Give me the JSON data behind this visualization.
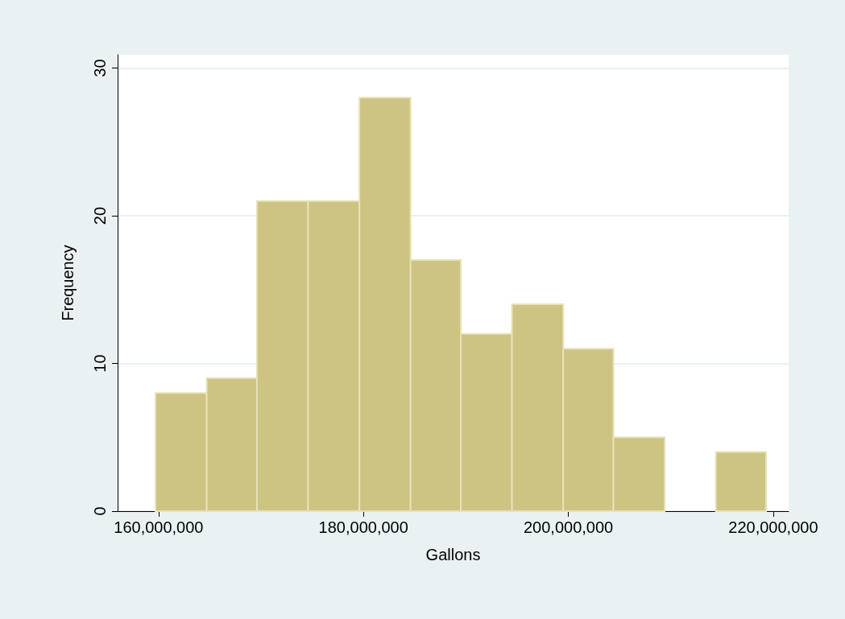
{
  "chart_data": {
    "type": "histogram",
    "xlabel": "Gallons",
    "ylabel": "Frequency",
    "bins": [
      159700000,
      164700000,
      169600000,
      174600000,
      179600000,
      184600000,
      189500000,
      194500000,
      199500000,
      204400000,
      209400000,
      214400000,
      219300000
    ],
    "values": [
      8,
      9,
      21,
      21,
      28,
      17,
      12,
      14,
      11,
      5,
      0,
      4
    ],
    "color": "#cdc383",
    "xlim": [
      156000000,
      221500000
    ],
    "xticks": [
      {
        "value": 160000000,
        "label": "160,000,000"
      },
      {
        "value": 180000000,
        "label": "180,000,000"
      },
      {
        "value": 200000000,
        "label": "200,000,000"
      },
      {
        "value": 220000000,
        "label": "220,000,000"
      }
    ],
    "ylim": [
      0,
      30.9
    ],
    "yticks": [
      0,
      10,
      20,
      30
    ],
    "grid": "y"
  }
}
